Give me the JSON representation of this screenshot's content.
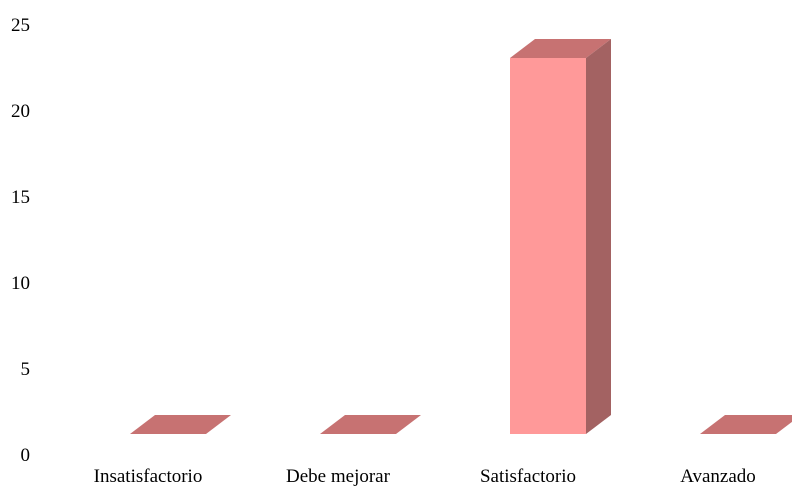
{
  "chart_data": {
    "type": "bar",
    "style": "3d-column",
    "categories": [
      "Insatisfactorio",
      "Debe mejorar",
      "Satisfactorio",
      "Avanzado"
    ],
    "values": [
      0,
      0,
      22,
      0
    ],
    "yticks": [
      "0",
      "5",
      "10",
      "15",
      "20",
      "25"
    ],
    "ylim": [
      0,
      25
    ],
    "grid": false,
    "legend": "none",
    "colors": {
      "front": "#ff9999",
      "top": "#c77272",
      "side": "#a36262"
    }
  }
}
